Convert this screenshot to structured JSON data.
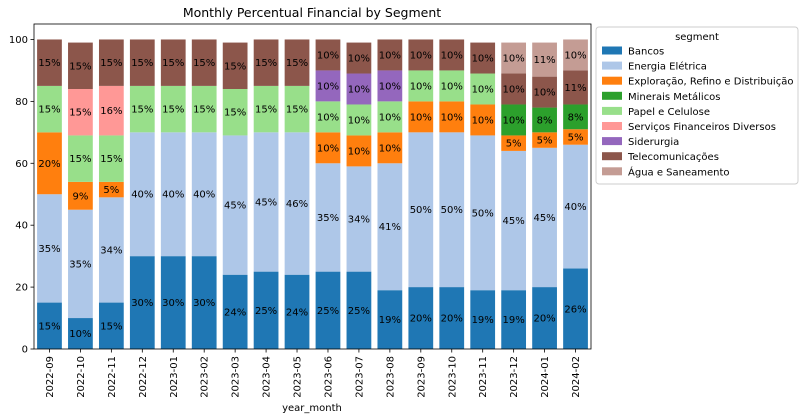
{
  "chart_data": {
    "type": "bar",
    "stacked": true,
    "title": "Monthly Percentual Financial by Segment",
    "xlabel": "year_month",
    "ylabel": "",
    "ylim": [
      0,
      105
    ],
    "yticks": [
      0,
      20,
      40,
      60,
      80,
      100
    ],
    "legend": {
      "title": "segment",
      "placement": "outside-right"
    },
    "categories": [
      "2022-09",
      "2022-10",
      "2022-11",
      "2022-12",
      "2023-01",
      "2023-02",
      "2023-03",
      "2023-04",
      "2023-05",
      "2023-06",
      "2023-07",
      "2023-08",
      "2023-09",
      "2023-10",
      "2023-11",
      "2023-12",
      "2024-01",
      "2024-02"
    ],
    "series": [
      {
        "name": "Bancos",
        "color": "#1f77b4",
        "values": [
          15,
          10,
          15,
          30,
          30,
          30,
          24,
          25,
          24,
          25,
          25,
          19,
          20,
          20,
          19,
          19,
          20,
          26
        ],
        "labels": [
          "15%",
          "10%",
          "15%",
          "30%",
          "30%",
          "30%",
          "24%",
          "25%",
          "24%",
          "25%",
          "25%",
          "19%",
          "20%",
          "20%",
          "19%",
          "19%",
          "20%",
          "26%"
        ]
      },
      {
        "name": "Energia Elétrica",
        "color": "#aec7e8",
        "values": [
          35,
          35,
          34,
          40,
          40,
          40,
          45,
          45,
          46,
          35,
          34,
          41,
          50,
          50,
          50,
          45,
          45,
          40
        ],
        "labels": [
          "35%",
          "35%",
          "34%",
          "40%",
          "40%",
          "40%",
          "45%",
          "45%",
          "46%",
          "35%",
          "34%",
          "41%",
          "50%",
          "50%",
          "50%",
          "45%",
          "45%",
          "40%"
        ]
      },
      {
        "name": "Exploração, Refino e Distribuição",
        "color": "#ff7f0e",
        "values": [
          20,
          9,
          5,
          0,
          0,
          0,
          0,
          0,
          0,
          10,
          10,
          10,
          10,
          10,
          10,
          5,
          5,
          5
        ],
        "labels": [
          "20%",
          "9%",
          "5%",
          "",
          "",
          "",
          "",
          "",
          "",
          "10%",
          "10%",
          "10%",
          "10%",
          "10%",
          "10%",
          "5%",
          "5%",
          "5%"
        ]
      },
      {
        "name": "Minerais Metálicos",
        "color": "#2ca02c",
        "values": [
          0,
          0,
          0,
          0,
          0,
          0,
          0,
          0,
          0,
          0,
          0,
          0,
          0,
          0,
          0,
          10,
          8,
          8
        ],
        "labels": [
          "",
          "",
          "",
          "",
          "",
          "",
          "",
          "",
          "",
          "",
          "",
          "",
          "",
          "",
          "",
          "10%",
          "8%",
          "8%"
        ]
      },
      {
        "name": "Papel e Celulose",
        "color": "#98df8a",
        "values": [
          15,
          15,
          15,
          15,
          15,
          15,
          15,
          15,
          15,
          10,
          10,
          10,
          10,
          10,
          10,
          0,
          0,
          0
        ],
        "labels": [
          "15%",
          "15%",
          "15%",
          "15%",
          "15%",
          "15%",
          "15%",
          "15%",
          "15%",
          "10%",
          "10%",
          "10%",
          "10%",
          "10%",
          "10%",
          "",
          "",
          ""
        ]
      },
      {
        "name": "Serviços Financeiros Diversos",
        "color": "#ff9896",
        "values": [
          0,
          15,
          16,
          0,
          0,
          0,
          0,
          0,
          0,
          0,
          0,
          0,
          0,
          0,
          0,
          0,
          0,
          0
        ],
        "labels": [
          "",
          "15%",
          "16%",
          "",
          "",
          "",
          "",
          "",
          "",
          "",
          "",
          "",
          "",
          "",
          "",
          "",
          "",
          ""
        ]
      },
      {
        "name": "Siderurgia",
        "color": "#9467bd",
        "values": [
          0,
          0,
          0,
          0,
          0,
          0,
          0,
          0,
          0,
          10,
          10,
          10,
          0,
          0,
          0,
          0,
          0,
          0
        ],
        "labels": [
          "",
          "",
          "",
          "",
          "",
          "",
          "",
          "",
          "",
          "10%",
          "10%",
          "10%",
          "",
          "",
          "",
          "",
          "",
          ""
        ]
      },
      {
        "name": "Telecomunicações",
        "color": "#8c564b",
        "values": [
          15,
          15,
          15,
          15,
          15,
          15,
          15,
          15,
          15,
          10,
          10,
          10,
          10,
          10,
          10,
          10,
          10,
          11
        ],
        "labels": [
          "15%",
          "15%",
          "15%",
          "15%",
          "15%",
          "15%",
          "15%",
          "15%",
          "15%",
          "10%",
          "10%",
          "10%",
          "10%",
          "10%",
          "10%",
          "10%",
          "10%",
          "11%"
        ]
      },
      {
        "name": "Água e Saneamento",
        "color": "#c49c94",
        "values": [
          0,
          0,
          0,
          0,
          0,
          0,
          0,
          0,
          0,
          0,
          0,
          0,
          0,
          0,
          0,
          10,
          11,
          10
        ],
        "labels": [
          "",
          "",
          "",
          "",
          "",
          "",
          "",
          "",
          "",
          "",
          "",
          "",
          "",
          "",
          "",
          "10%",
          "11%",
          "10%"
        ]
      }
    ]
  }
}
